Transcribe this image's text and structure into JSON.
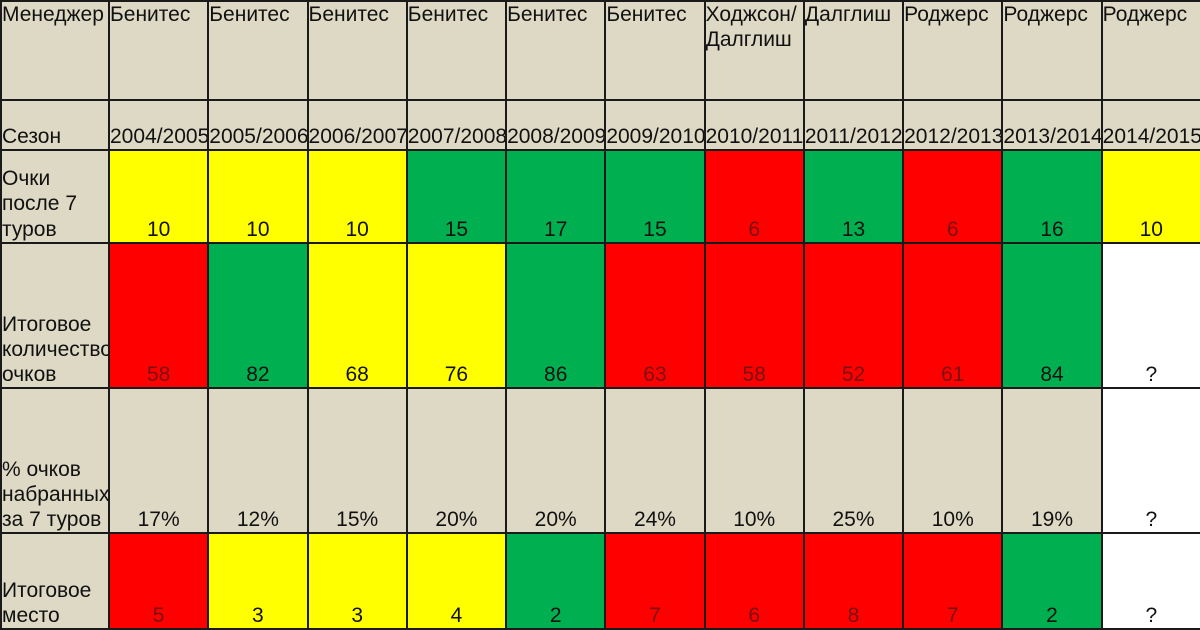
{
  "chart_data": {
    "type": "table",
    "row_labels": {
      "manager": "Менеджер",
      "season": "Сезон",
      "points7": "Очки после 7 туров",
      "total": "Итоговое количество очков",
      "percent": "% очков набранных за 7 туров",
      "place": "Итоговое место"
    },
    "columns": [
      {
        "manager": "Бенитес",
        "season": "2004/2005",
        "points7": "10",
        "points7_color": "yellow",
        "total": "58",
        "total_color": "red",
        "percent": "17%",
        "place": "5",
        "place_color": "red"
      },
      {
        "manager": "Бенитес",
        "season": "2005/2006",
        "points7": "10",
        "points7_color": "yellow",
        "total": "82",
        "total_color": "green",
        "percent": "12%",
        "place": "3",
        "place_color": "yellow"
      },
      {
        "manager": "Бенитес",
        "season": "2006/2007",
        "points7": "10",
        "points7_color": "yellow",
        "total": "68",
        "total_color": "yellow",
        "percent": "15%",
        "place": "3",
        "place_color": "yellow"
      },
      {
        "manager": "Бенитес",
        "season": "2007/2008",
        "points7": "15",
        "points7_color": "green",
        "total": "76",
        "total_color": "yellow",
        "percent": "20%",
        "place": "4",
        "place_color": "yellow"
      },
      {
        "manager": "Бенитес",
        "season": "2008/2009",
        "points7": "17",
        "points7_color": "green",
        "total": "86",
        "total_color": "green",
        "percent": "20%",
        "place": "2",
        "place_color": "green"
      },
      {
        "manager": "Бенитес",
        "season": "2009/2010",
        "points7": "15",
        "points7_color": "green",
        "total": "63",
        "total_color": "red",
        "percent": "24%",
        "place": "7",
        "place_color": "red"
      },
      {
        "manager": "Ходжсон/ Далглиш",
        "season": "2010/2011",
        "points7": "6",
        "points7_color": "red",
        "total": "58",
        "total_color": "red",
        "percent": "10%",
        "place": "6",
        "place_color": "red"
      },
      {
        "manager": "Далглиш",
        "season": "2011/2012",
        "points7": "13",
        "points7_color": "green",
        "total": "52",
        "total_color": "red",
        "percent": "25%",
        "place": "8",
        "place_color": "red"
      },
      {
        "manager": "Роджерс",
        "season": "2012/2013",
        "points7": "6",
        "points7_color": "red",
        "total": "61",
        "total_color": "red",
        "percent": "10%",
        "place": "7",
        "place_color": "red"
      },
      {
        "manager": "Роджерс",
        "season": "2013/2014",
        "points7": "16",
        "points7_color": "green",
        "total": "84",
        "total_color": "green",
        "percent": "19%",
        "place": "2",
        "place_color": "green"
      },
      {
        "manager": "Роджерс",
        "season": "2014/2015",
        "points7": "10",
        "points7_color": "yellow",
        "total": "?",
        "total_color": "white",
        "percent": "?",
        "percent_color": "white",
        "place": "?",
        "place_color": "white"
      }
    ],
    "colors": {
      "green": "#00b050",
      "yellow": "#ffff00",
      "red": "#ff0000",
      "white": "#ffffff",
      "grey": "#ddd9c4"
    }
  }
}
